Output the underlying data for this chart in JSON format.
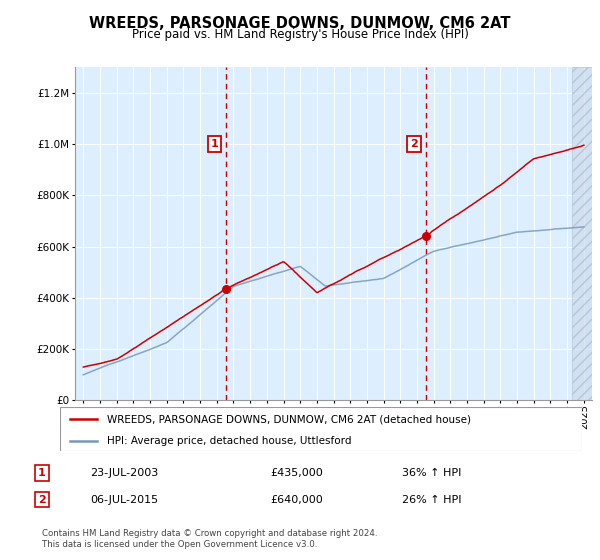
{
  "title": "WREEDS, PARSONAGE DOWNS, DUNMOW, CM6 2AT",
  "subtitle": "Price paid vs. HM Land Registry's House Price Index (HPI)",
  "legend_line1": "WREEDS, PARSONAGE DOWNS, DUNMOW, CM6 2AT (detached house)",
  "legend_line2": "HPI: Average price, detached house, Uttlesford",
  "annotation1_date": "23-JUL-2003",
  "annotation1_price": "£435,000",
  "annotation1_hpi": "36% ↑ HPI",
  "annotation2_date": "06-JUL-2015",
  "annotation2_price": "£640,000",
  "annotation2_hpi": "26% ↑ HPI",
  "footer": "Contains HM Land Registry data © Crown copyright and database right 2024.\nThis data is licensed under the Open Government Licence v3.0.",
  "sale1_x": 2003.55,
  "sale1_y": 435000,
  "sale2_x": 2015.51,
  "sale2_y": 640000,
  "dashed_line1_x": 2003.55,
  "dashed_line2_x": 2015.51,
  "ylim": [
    0,
    1300000
  ],
  "xlim_start": 1994.5,
  "xlim_end": 2025.5,
  "red_color": "#cc0000",
  "blue_color": "#7799bb",
  "background_color": "#ddeeff",
  "hatch_region_start": 2024.3
}
